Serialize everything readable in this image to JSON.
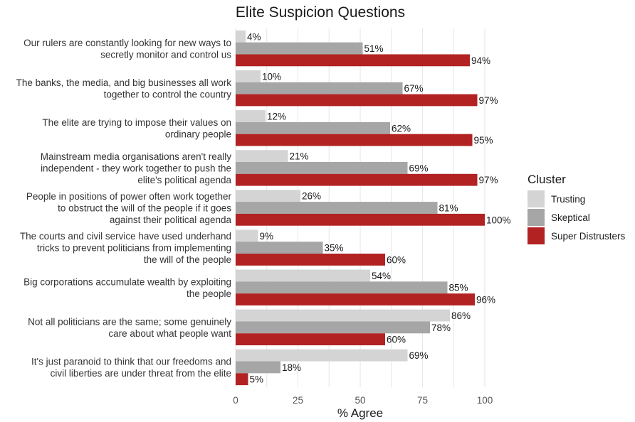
{
  "chart_data": {
    "type": "bar",
    "orientation": "horizontal",
    "title": "Elite Suspicion Questions",
    "xlabel": "% Agree",
    "ylabel": "",
    "xlim": [
      0,
      100
    ],
    "x_ticks": [
      0,
      25,
      50,
      75,
      100
    ],
    "grid": true,
    "categories": [
      [
        "Our rulers are constantly looking for new ways to",
        "secretly monitor and control us"
      ],
      [
        "The banks, the media, and big businesses all work",
        "together to control the country"
      ],
      [
        "The elite are trying to impose their values on",
        "ordinary people"
      ],
      [
        "Mainstream media organisations aren't really",
        "independent - they work together to push the",
        "elite's political agenda"
      ],
      [
        "People in positions of power often work together",
        "to obstruct the will of the people if it goes",
        "against their political agenda"
      ],
      [
        "The courts and civil service have used underhand",
        "tricks to prevent politicians from implementing",
        "the will of the people"
      ],
      [
        "Big corporations accumulate wealth by exploiting",
        "the people"
      ],
      [
        "Not all politicians are the same; some genuinely",
        "care about what people want"
      ],
      [
        "It's just paranoid to think that our freedoms and",
        "civil liberties are under threat from the elite"
      ]
    ],
    "series": [
      {
        "name": "Trusting",
        "color": "#d4d4d4",
        "values": [
          4,
          10,
          12,
          21,
          26,
          9,
          54,
          86,
          69
        ]
      },
      {
        "name": "Skeptical",
        "color": "#a6a6a6",
        "values": [
          51,
          67,
          62,
          69,
          81,
          35,
          85,
          78,
          18
        ]
      },
      {
        "name": "Super Distrusters",
        "color": "#b22222",
        "values": [
          94,
          97,
          95,
          97,
          100,
          60,
          96,
          60,
          5
        ]
      }
    ],
    "value_suffix": "%",
    "legend": {
      "title": "Cluster",
      "placement": "right"
    }
  }
}
